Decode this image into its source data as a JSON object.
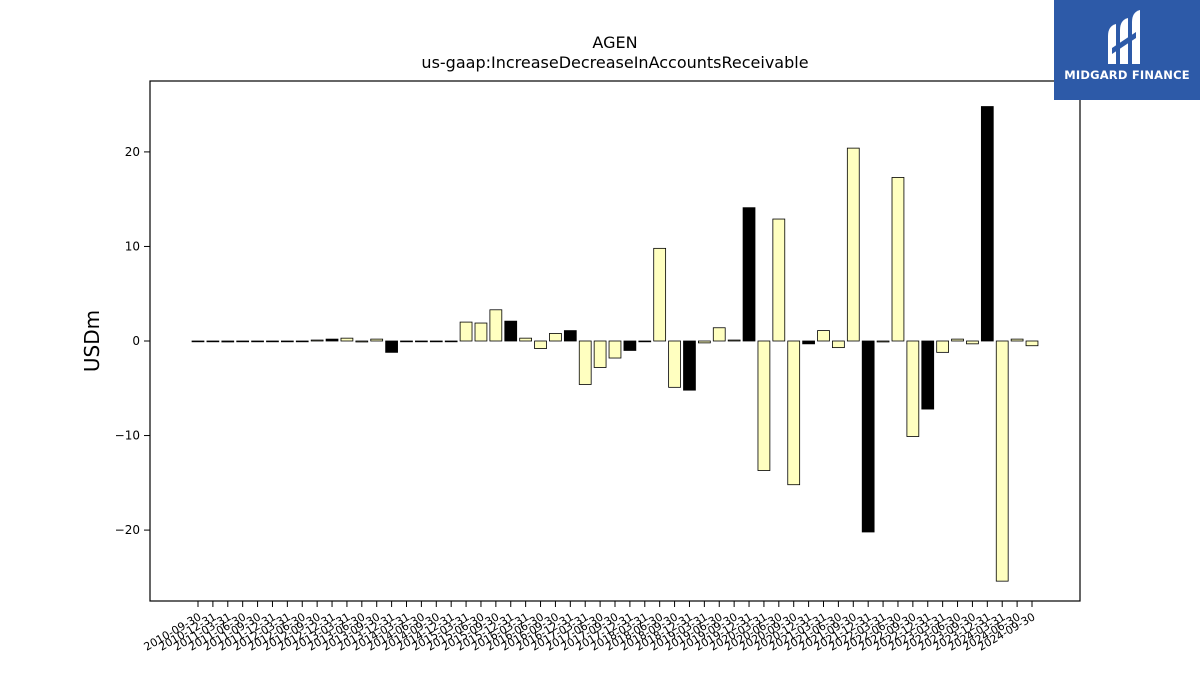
{
  "logo": {
    "text": "MIDGARD FINANCE",
    "background": "#2d5aa8"
  },
  "chart_data": {
    "type": "bar",
    "title": "AGEN",
    "subtitle": "us-gaap:IncreaseDecreaseInAccountsReceivable",
    "xlabel": "",
    "ylabel": "USDm",
    "ylim": [
      -27.5,
      27.5
    ],
    "yticks": [
      -20,
      -10,
      0,
      10,
      20
    ],
    "ytick_labels": [
      "−20",
      "−10",
      "0",
      "10",
      "20"
    ],
    "grid": false,
    "colors": {
      "quarter": "#ffffc0",
      "annual": "#000000",
      "edge": "#000000"
    },
    "categories": [
      "2010-09-30",
      "2010-12-31",
      "2011-03-31",
      "2011-06-30",
      "2011-09-30",
      "2011-12-31",
      "2012-03-31",
      "2012-06-30",
      "2012-09-30",
      "2012-12-31",
      "2013-03-31",
      "2013-06-30",
      "2013-09-30",
      "2013-12-31",
      "2014-03-31",
      "2014-06-30",
      "2014-09-30",
      "2014-12-31",
      "2015-03-31",
      "2015-06-30",
      "2015-09-30",
      "2015-12-31",
      "2016-03-31",
      "2016-06-30",
      "2016-09-30",
      "2016-12-31",
      "2017-03-31",
      "2017-06-30",
      "2017-09-30",
      "2017-12-31",
      "2018-03-31",
      "2018-06-30",
      "2018-09-30",
      "2018-12-31",
      "2019-03-31",
      "2019-06-30",
      "2019-09-30",
      "2019-12-31",
      "2020-03-31",
      "2020-06-30",
      "2020-09-30",
      "2020-12-31",
      "2021-03-31",
      "2021-06-30",
      "2021-09-30",
      "2021-12-31",
      "2022-03-31",
      "2022-06-30",
      "2022-09-30",
      "2022-12-31",
      "2023-03-31",
      "2023-06-30",
      "2023-09-30",
      "2023-12-31",
      "2024-03-31",
      "2024-06-30",
      "2024-09-30"
    ],
    "values": [
      0,
      0,
      -0.1,
      0,
      0,
      0,
      0,
      0,
      0.1,
      0.2,
      0.3,
      -0.1,
      0.2,
      -1.2,
      0,
      0,
      0,
      0,
      2.0,
      1.9,
      3.3,
      2.1,
      0.3,
      -0.8,
      0.8,
      1.1,
      -4.6,
      -2.8,
      -1.8,
      -1.0,
      0,
      9.8,
      -4.9,
      -5.2,
      -0.2,
      1.4,
      0.1,
      14.1,
      -13.7,
      12.9,
      -15.2,
      -0.3,
      1.1,
      -0.7,
      20.4,
      -20.2,
      -0.1,
      17.3,
      -10.1,
      -7.2,
      -1.2,
      0.2,
      -0.3,
      24.8,
      -25.4,
      0.2,
      -0.5
    ],
    "annual": [
      false,
      false,
      true,
      false,
      false,
      false,
      false,
      false,
      false,
      true,
      false,
      false,
      false,
      true,
      false,
      false,
      false,
      false,
      false,
      false,
      false,
      true,
      false,
      false,
      false,
      true,
      false,
      false,
      false,
      true,
      false,
      false,
      false,
      true,
      false,
      false,
      false,
      true,
      false,
      false,
      false,
      true,
      false,
      false,
      false,
      true,
      false,
      false,
      false,
      true,
      false,
      false,
      false,
      true,
      false,
      false,
      false
    ]
  }
}
